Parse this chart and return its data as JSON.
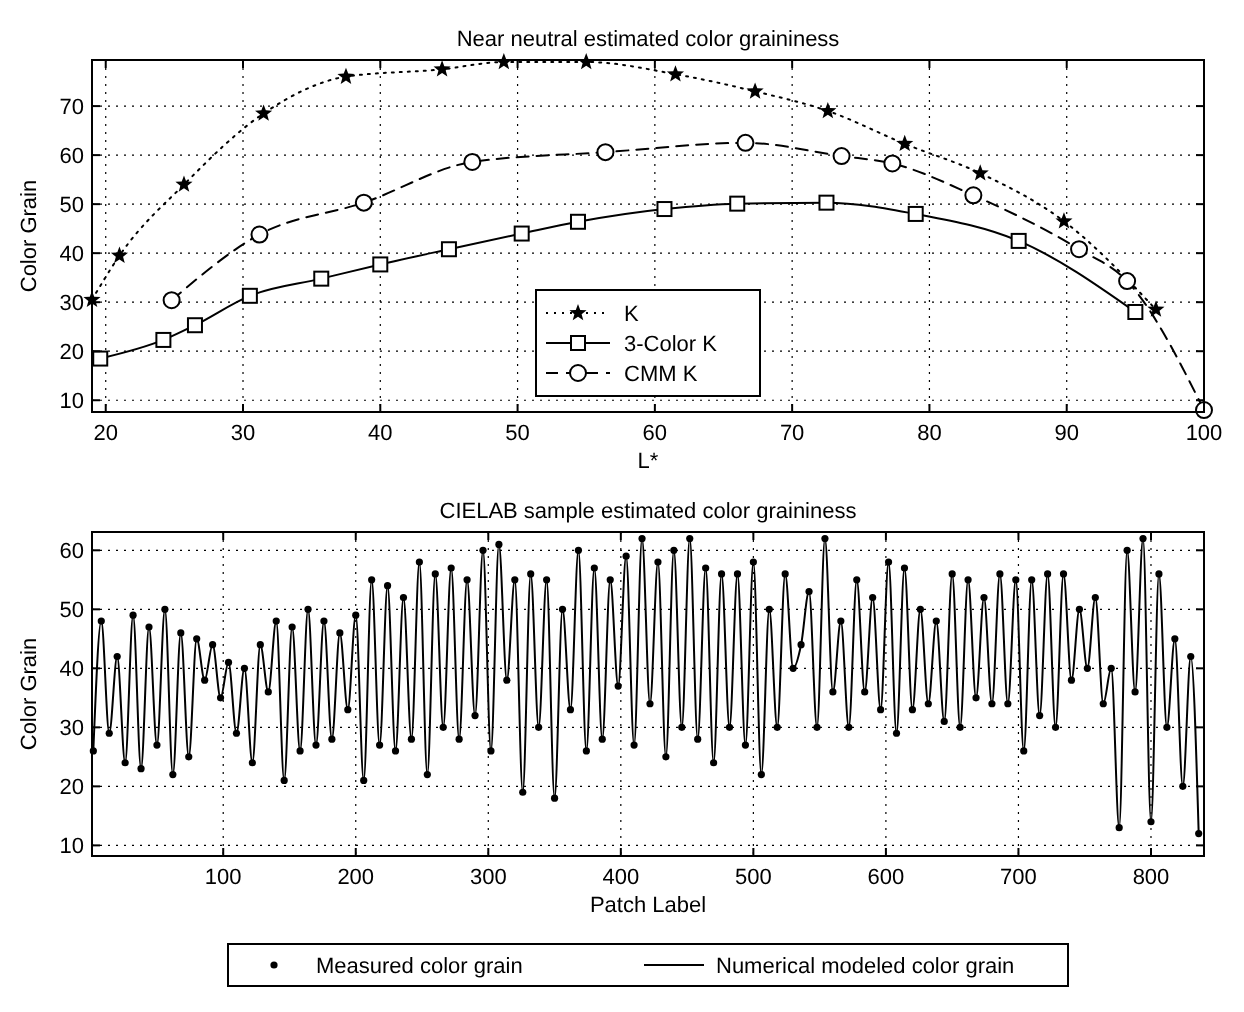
{
  "chart_data": [
    {
      "type": "line",
      "title": "Near neutral estimated color graininess",
      "xlabel": "L*",
      "ylabel": "Color Grain",
      "xlim": [
        19,
        100
      ],
      "ylim": [
        7.6,
        79.4
      ],
      "xticks": [
        20,
        30,
        40,
        50,
        60,
        70,
        80,
        90,
        100
      ],
      "yticks": [
        10,
        20,
        30,
        40,
        50,
        60,
        70
      ],
      "grid": true,
      "legend": "bottom",
      "series": [
        {
          "name": "K",
          "color": "#000000",
          "marker": "star",
          "line_style": "dotted",
          "x": [
            19,
            21,
            25.7,
            31.5,
            37.5,
            44.5,
            49,
            55,
            61.5,
            67.3,
            72.6,
            78.2,
            83.7,
            89.8,
            96.5
          ],
          "values": [
            30.5,
            39.5,
            54,
            68.5,
            76,
            77.5,
            79,
            79,
            76.5,
            73,
            69,
            62.3,
            56.3,
            46.5,
            28.5
          ]
        },
        {
          "name": "3-Color K",
          "color": "#000000",
          "marker": "square",
          "line_style": "solid",
          "x": [
            19.6,
            24.2,
            26.5,
            30.5,
            35.7,
            40,
            45,
            50.3,
            54.4,
            60.7,
            66,
            72.5,
            79,
            86.5,
            95
          ],
          "values": [
            18.5,
            22.3,
            25.3,
            31.3,
            34.8,
            37.7,
            40.8,
            44,
            46.4,
            49,
            50.1,
            50.3,
            48,
            42.5,
            28
          ]
        },
        {
          "name": "CMM K",
          "color": "#000000",
          "marker": "circle",
          "line_style": "dashed",
          "x": [
            24.8,
            31.2,
            38.8,
            46.7,
            56.4,
            66.6,
            73.6,
            77.3,
            83.2,
            90.9,
            94.4,
            100
          ],
          "values": [
            30.4,
            43.8,
            50.3,
            58.6,
            60.6,
            62.5,
            59.8,
            58.3,
            51.8,
            40.8,
            34.3,
            8
          ]
        }
      ]
    },
    {
      "type": "line",
      "title": "CIELAB sample estimated color graininess",
      "xlabel": "Patch Label",
      "ylabel": "Color Grain",
      "xlim": [
        1,
        840
      ],
      "ylim": [
        8.2,
        63.1
      ],
      "xticks": [
        100,
        200,
        300,
        400,
        500,
        600,
        700,
        800
      ],
      "yticks": [
        10,
        20,
        30,
        40,
        50,
        60
      ],
      "grid": true,
      "legend": "bottom",
      "x": [
        2,
        8,
        14,
        20,
        26,
        32,
        38,
        44,
        50,
        56,
        62,
        68,
        74,
        80,
        86,
        92,
        98,
        104,
        110,
        116,
        122,
        128,
        134,
        140,
        146,
        152,
        158,
        164,
        170,
        176,
        182,
        188,
        194,
        200,
        206,
        212,
        218,
        224,
        230,
        236,
        242,
        248,
        254,
        260,
        266,
        272,
        278,
        284,
        290,
        296,
        302,
        308,
        314,
        320,
        326,
        332,
        338,
        344,
        350,
        356,
        362,
        368,
        374,
        380,
        386,
        392,
        398,
        404,
        410,
        416,
        422,
        428,
        434,
        440,
        446,
        452,
        458,
        464,
        470,
        476,
        482,
        488,
        494,
        500,
        506,
        512,
        518,
        524,
        530,
        536,
        542,
        548,
        554,
        560,
        566,
        572,
        578,
        584,
        590,
        596,
        602,
        608,
        614,
        620,
        626,
        632,
        638,
        644,
        650,
        656,
        662,
        668,
        674,
        680,
        686,
        692,
        698,
        704,
        710,
        716,
        722,
        728,
        734,
        740,
        746,
        752,
        758,
        764,
        770,
        776,
        782,
        788,
        794,
        800,
        806,
        812,
        818,
        824,
        830,
        836
      ],
      "series": [
        {
          "name": "Measured color grain",
          "type": "scatter",
          "color": "#000000",
          "marker": "circle",
          "values": [
            26,
            48,
            29,
            42,
            24,
            49,
            23,
            47,
            27,
            50,
            22,
            46,
            25,
            45,
            38,
            44,
            35,
            41,
            29,
            40,
            24,
            44,
            36,
            48,
            21,
            47,
            26,
            50,
            27,
            48,
            28,
            46,
            33,
            49,
            21,
            55,
            27,
            54,
            26,
            52,
            28,
            58,
            22,
            56,
            30,
            57,
            28,
            55,
            32,
            60,
            26,
            61,
            38,
            55,
            19,
            56,
            30,
            55,
            18,
            50,
            33,
            60,
            26,
            57,
            28,
            55,
            37,
            59,
            27,
            62,
            34,
            58,
            25,
            60,
            30,
            62,
            28,
            57,
            24,
            56,
            30,
            56,
            27,
            58,
            22,
            50,
            30,
            56,
            40,
            44,
            53,
            30,
            62,
            36,
            48,
            30,
            55,
            36,
            52,
            33,
            58,
            29,
            57,
            33,
            50,
            34,
            48,
            31,
            56,
            30,
            55,
            35,
            52,
            34,
            56,
            34,
            55,
            26,
            55,
            32,
            56,
            30,
            56,
            38,
            50,
            40,
            52,
            34,
            40,
            13,
            60,
            36,
            62,
            14,
            56,
            30,
            45,
            20,
            42,
            12
          ]
        },
        {
          "name": "Numerical modeled color grain",
          "color": "#000000",
          "marker": "none",
          "line_style": "solid",
          "values": [
            26,
            48,
            29,
            42,
            24,
            49,
            23,
            47,
            27,
            50,
            22,
            46,
            25,
            45,
            38,
            44,
            35,
            41,
            29,
            40,
            24,
            44,
            36,
            48,
            21,
            47,
            26,
            50,
            27,
            48,
            28,
            46,
            33,
            49,
            21,
            55,
            27,
            54,
            26,
            52,
            28,
            58,
            22,
            56,
            30,
            57,
            28,
            55,
            32,
            60,
            26,
            61,
            38,
            55,
            19,
            56,
            30,
            55,
            18,
            50,
            33,
            60,
            26,
            57,
            28,
            55,
            37,
            59,
            27,
            62,
            34,
            58,
            25,
            60,
            30,
            62,
            28,
            57,
            24,
            56,
            30,
            56,
            27,
            58,
            22,
            50,
            30,
            56,
            40,
            44,
            53,
            30,
            62,
            36,
            48,
            30,
            55,
            36,
            52,
            33,
            58,
            29,
            57,
            33,
            50,
            34,
            48,
            31,
            56,
            30,
            55,
            35,
            52,
            34,
            56,
            34,
            55,
            26,
            55,
            32,
            56,
            30,
            56,
            38,
            50,
            40,
            52,
            34,
            40,
            13,
            60,
            36,
            62,
            14,
            56,
            30,
            45,
            20,
            42,
            12
          ]
        }
      ]
    }
  ]
}
